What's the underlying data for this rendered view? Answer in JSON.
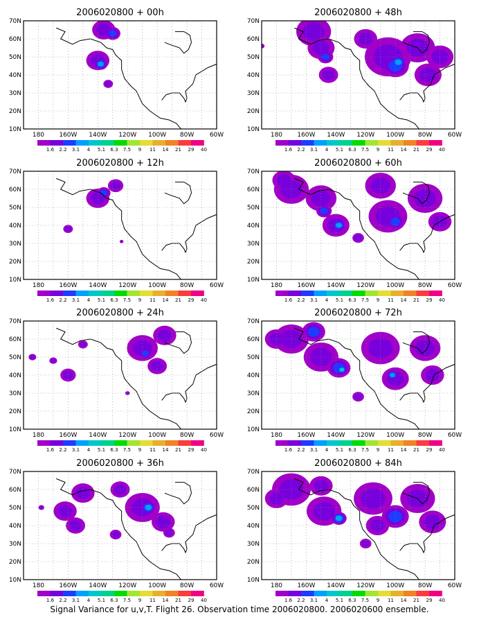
{
  "figure": {
    "caption": "Signal Variance for u,v,T. Flight 26. Observation time 2006020800. 2006020600 ensemble.",
    "lon_labels": [
      "180",
      "160W",
      "140W",
      "120W",
      "100W",
      "80W",
      "60W"
    ],
    "lat_labels": [
      "10N",
      "20N",
      "30N",
      "40N",
      "50N",
      "60N",
      "70N"
    ],
    "colorbar": {
      "labels": [
        "1.6",
        "2.2",
        "3.1",
        "4",
        "5.1",
        "6.3",
        "7.5",
        "9",
        "11",
        "14",
        "21",
        "29",
        "40"
      ],
      "colors": [
        "#a000c8",
        "#7800dc",
        "#1e3cff",
        "#00a0ff",
        "#00c8c8",
        "#00d28c",
        "#00dc00",
        "#a0e632",
        "#e6dc32",
        "#e6af2d",
        "#f08228",
        "#fa3c3c",
        "#f00082"
      ]
    },
    "panels": [
      {
        "title": "2006020800 + 00h",
        "lead_hours": 0
      },
      {
        "title": "2006020800 + 48h",
        "lead_hours": 48
      },
      {
        "title": "2006020800 + 12h",
        "lead_hours": 12
      },
      {
        "title": "2006020800 + 60h",
        "lead_hours": 60
      },
      {
        "title": "2006020800 + 24h",
        "lead_hours": 24
      },
      {
        "title": "2006020800 + 72h",
        "lead_hours": 72
      },
      {
        "title": "2006020800 + 36h",
        "lead_hours": 36
      },
      {
        "title": "2006020800 + 84h",
        "lead_hours": 84
      }
    ]
  }
}
